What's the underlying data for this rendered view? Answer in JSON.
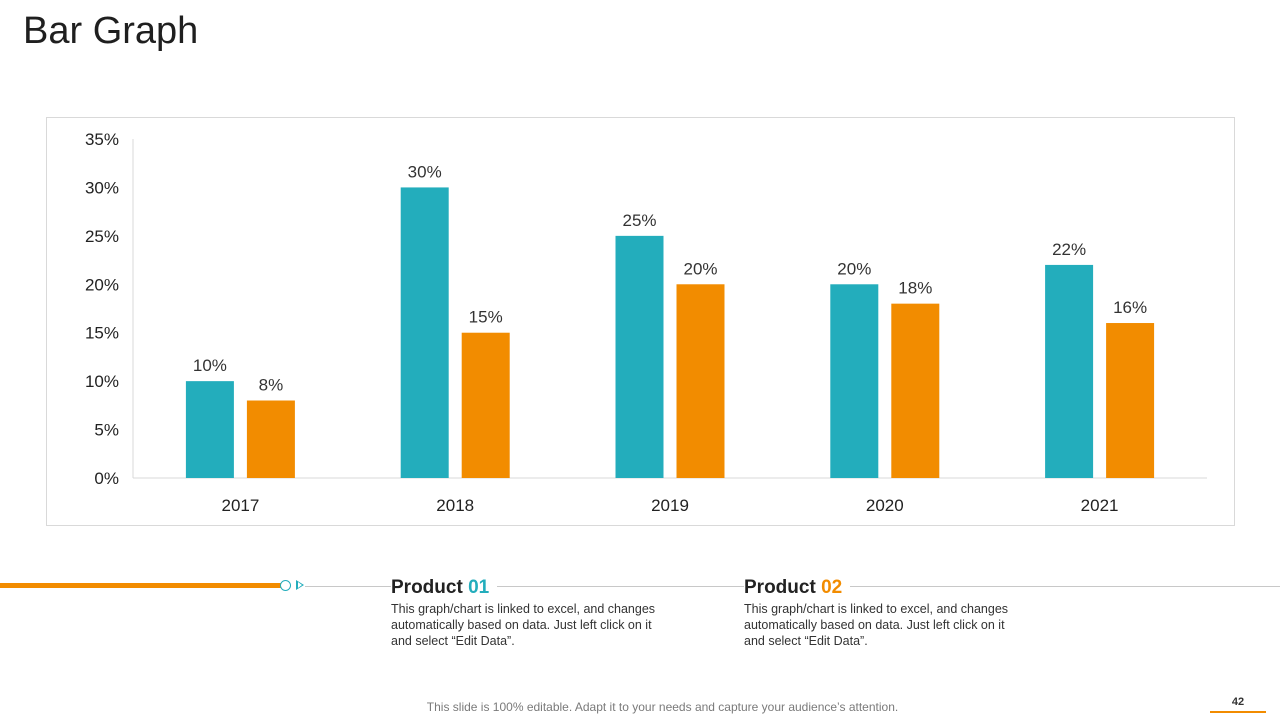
{
  "slide": {
    "title": "Bar Graph",
    "footer": "This slide is 100% editable. Adapt it to your needs and capture your audience’s attention.",
    "page_number": "42"
  },
  "products": [
    {
      "label": "Product",
      "number": "01",
      "description": "This graph/chart is linked to excel, and changes automatically based on data. Just left click on it and select “Edit Data”."
    },
    {
      "label": "Product",
      "number": "02",
      "description": "This graph/chart is linked to excel, and changes automatically based on data. Just left click on it and select “Edit Data”."
    }
  ],
  "colors": {
    "series1": "#23adbc",
    "series2": "#f28c00",
    "axis": "#d9d9d9",
    "text": "#333333"
  },
  "chart_data": {
    "type": "bar",
    "title": "",
    "xlabel": "",
    "ylabel": "",
    "categories": [
      "2017",
      "2018",
      "2019",
      "2020",
      "2021"
    ],
    "series": [
      {
        "name": "Product 01",
        "values": [
          10,
          30,
          25,
          20,
          22
        ],
        "labels": [
          "10%",
          "30%",
          "25%",
          "20%",
          "22%"
        ]
      },
      {
        "name": "Product 02",
        "values": [
          8,
          15,
          20,
          18,
          16
        ],
        "labels": [
          "8%",
          "15%",
          "20%",
          "18%",
          "16%"
        ]
      }
    ],
    "ylim": [
      0,
      35
    ],
    "yticks": [
      0,
      5,
      10,
      15,
      20,
      25,
      30,
      35
    ],
    "ytick_labels": [
      "0%",
      "5%",
      "10%",
      "15%",
      "20%",
      "25%",
      "30%",
      "35%"
    ],
    "grid": false,
    "legend": "none"
  }
}
